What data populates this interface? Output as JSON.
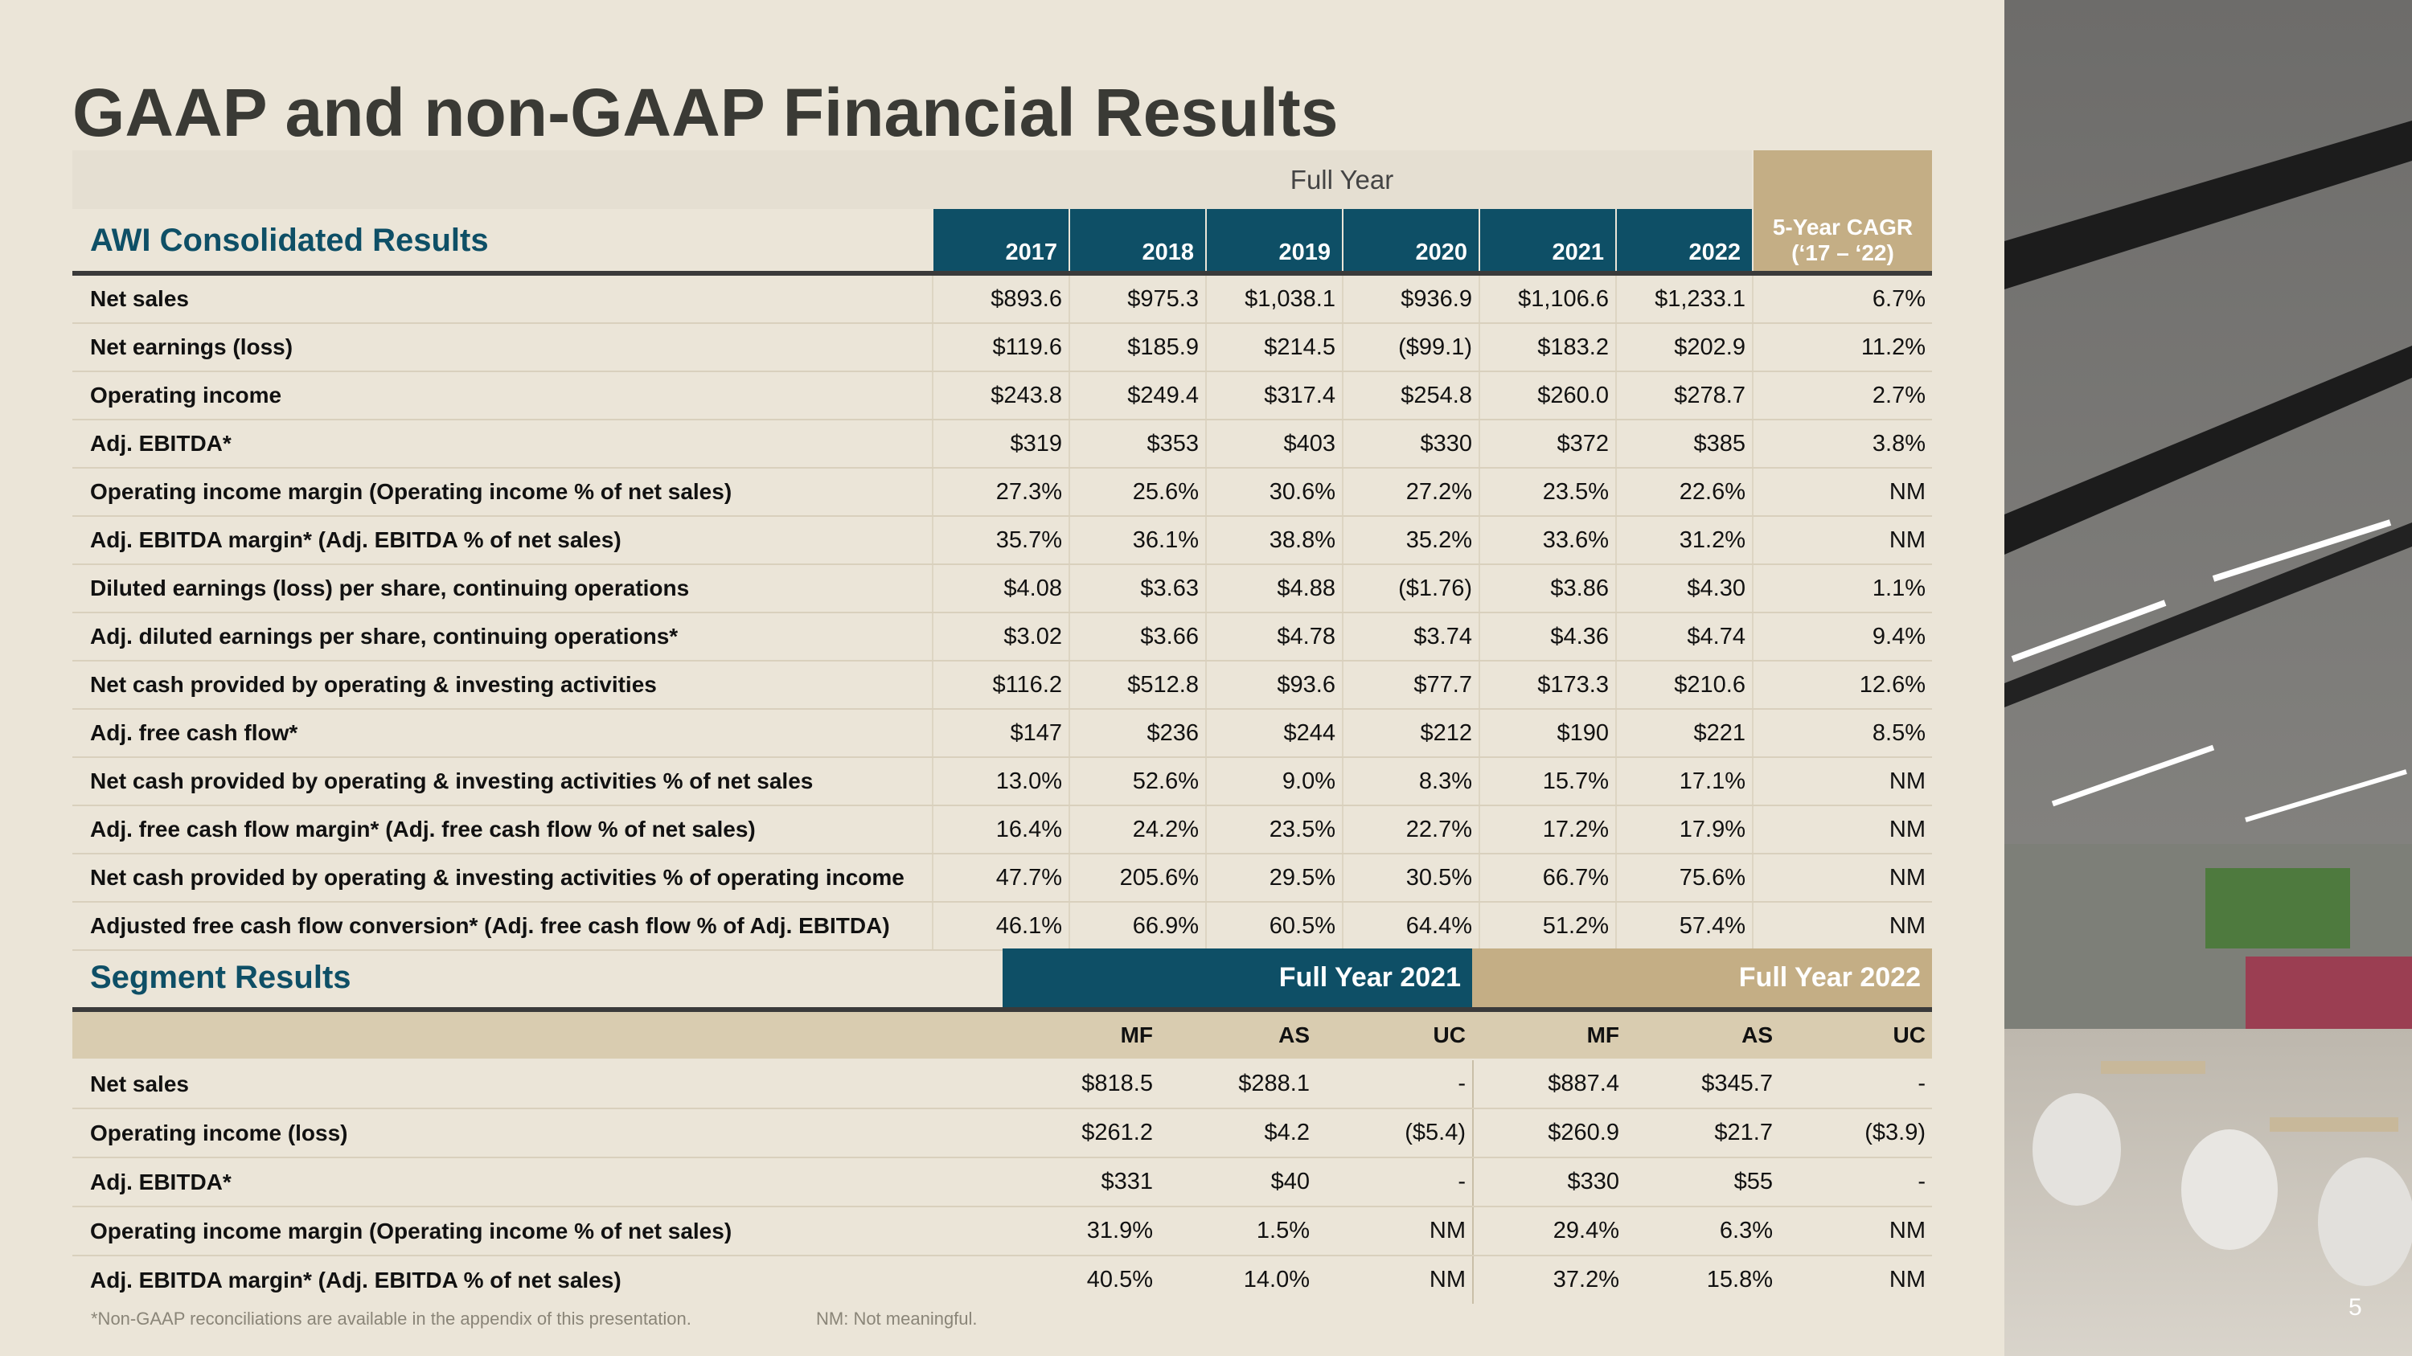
{
  "title": "GAAP and non-GAAP Financial Results",
  "consolidated": {
    "period_label": "Full Year",
    "heading": "AWI Consolidated Results",
    "columns": [
      "2017",
      "2018",
      "2019",
      "2020",
      "2021",
      "2022",
      "5-Year CAGR\n(‘17 – ‘22)"
    ],
    "rows": [
      {
        "label": "Net sales",
        "values": [
          "$893.6",
          "$975.3",
          "$1,038.1",
          "$936.9",
          "$1,106.6",
          "$1,233.1",
          "6.7%"
        ]
      },
      {
        "label": "Net earnings (loss)",
        "values": [
          "$119.6",
          "$185.9",
          "$214.5",
          "($99.1)",
          "$183.2",
          "$202.9",
          "11.2%"
        ]
      },
      {
        "label": "Operating income",
        "values": [
          "$243.8",
          "$249.4",
          "$317.4",
          "$254.8",
          "$260.0",
          "$278.7",
          "2.7%"
        ]
      },
      {
        "label": "Adj. EBITDA*",
        "values": [
          "$319",
          "$353",
          "$403",
          "$330",
          "$372",
          "$385",
          "3.8%"
        ]
      },
      {
        "label": "Operating income margin (Operating income % of net sales)",
        "values": [
          "27.3%",
          "25.6%",
          "30.6%",
          "27.2%",
          "23.5%",
          "22.6%",
          "NM"
        ]
      },
      {
        "label": "Adj. EBITDA margin* (Adj. EBITDA % of net sales)",
        "values": [
          "35.7%",
          "36.1%",
          "38.8%",
          "35.2%",
          "33.6%",
          "31.2%",
          "NM"
        ]
      },
      {
        "label": "Diluted earnings (loss) per share, continuing operations",
        "values": [
          "$4.08",
          "$3.63",
          "$4.88",
          "($1.76)",
          "$3.86",
          "$4.30",
          "1.1%"
        ]
      },
      {
        "label": "Adj. diluted earnings per share, continuing operations*",
        "values": [
          "$3.02",
          "$3.66",
          "$4.78",
          "$3.74",
          "$4.36",
          "$4.74",
          "9.4%"
        ]
      },
      {
        "label": "Net cash provided by operating & investing activities",
        "values": [
          "$116.2",
          "$512.8",
          "$93.6",
          "$77.7",
          "$173.3",
          "$210.6",
          "12.6%"
        ]
      },
      {
        "label": "Adj. free cash flow*",
        "values": [
          "$147",
          "$236",
          "$244",
          "$212",
          "$190",
          "$221",
          "8.5%"
        ]
      },
      {
        "label": "Net cash provided by operating & investing activities % of net sales",
        "values": [
          "13.0%",
          "52.6%",
          "9.0%",
          "8.3%",
          "15.7%",
          "17.1%",
          "NM"
        ]
      },
      {
        "label": "Adj. free cash flow margin* (Adj. free cash flow % of net sales)",
        "values": [
          "16.4%",
          "24.2%",
          "23.5%",
          "22.7%",
          "17.2%",
          "17.9%",
          "NM"
        ]
      },
      {
        "label": "Net cash provided by operating & investing activities % of operating income",
        "values": [
          "47.7%",
          "205.6%",
          "29.5%",
          "30.5%",
          "66.7%",
          "75.6%",
          "NM"
        ]
      },
      {
        "label": "Adjusted free cash flow conversion* (Adj. free cash flow % of Adj. EBITDA)",
        "values": [
          "46.1%",
          "66.9%",
          "60.5%",
          "64.4%",
          "51.2%",
          "57.4%",
          "NM"
        ]
      }
    ]
  },
  "segment": {
    "heading": "Segment Results",
    "groups": [
      "Full Year 2021",
      "Full Year 2022"
    ],
    "columns": [
      "MF",
      "AS",
      "UC",
      "MF",
      "AS",
      "UC"
    ],
    "rows": [
      {
        "label": "Net sales",
        "values": [
          "$818.5",
          "$288.1",
          "-",
          "$887.4",
          "$345.7",
          "-"
        ]
      },
      {
        "label": "Operating income (loss)",
        "values": [
          "$261.2",
          "$4.2",
          "($5.4)",
          "$260.9",
          "$21.7",
          "($3.9)"
        ]
      },
      {
        "label": "Adj. EBITDA*",
        "values": [
          "$331",
          "$40",
          "-",
          "$330",
          "$55",
          "-"
        ]
      },
      {
        "label": "Operating income margin (Operating income % of net sales)",
        "values": [
          "31.9%",
          "1.5%",
          "NM",
          "29.4%",
          "6.3%",
          "NM"
        ]
      },
      {
        "label": "Adj. EBITDA margin* (Adj. EBITDA % of net sales)",
        "values": [
          "40.5%",
          "14.0%",
          "NM",
          "37.2%",
          "15.8%",
          "NM"
        ]
      }
    ]
  },
  "footnotes": [
    "*Non-GAAP reconciliations are available in the appendix of this presentation.",
    "NM: Not meaningful."
  ],
  "page_number": "5"
}
